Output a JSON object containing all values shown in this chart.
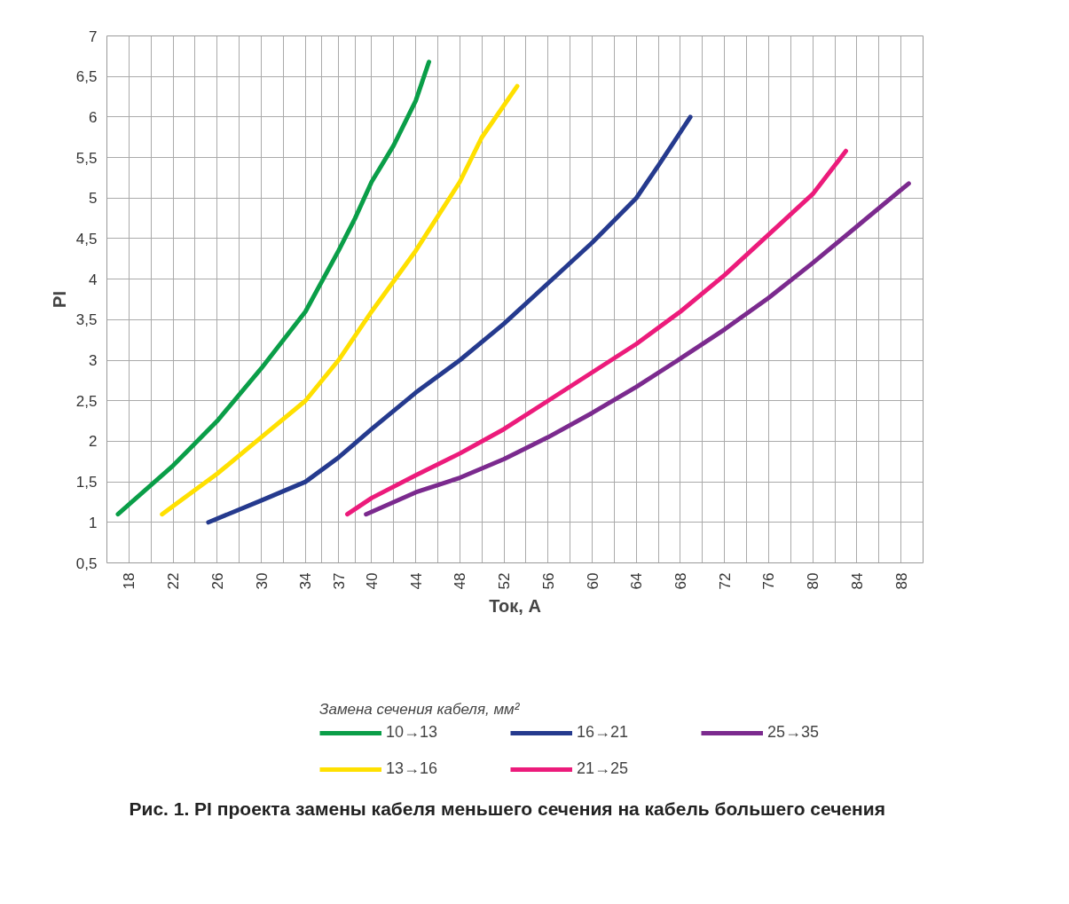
{
  "chart_data": {
    "type": "line",
    "xlabel": "Ток, А",
    "ylabel": "PI",
    "legend_title": "Замена сечения кабеля, мм²",
    "xlim": [
      16,
      90
    ],
    "ylim": [
      0.5,
      7
    ],
    "xticks": [
      18,
      {
        "value": 20,
        "label": null
      },
      22,
      {
        "value": 24,
        "label": null
      },
      26,
      {
        "value": 28,
        "label": null
      },
      30,
      {
        "value": 32,
        "label": null
      },
      34,
      {
        "value": 35.5,
        "label": null
      },
      37,
      {
        "value": 38.5,
        "label": null
      },
      40,
      {
        "value": 42,
        "label": null
      },
      44,
      {
        "value": 46,
        "label": null
      },
      48,
      {
        "value": 50,
        "label": null
      },
      52,
      {
        "value": 54,
        "label": null
      },
      56,
      {
        "value": 58,
        "label": null
      },
      60,
      {
        "value": 62,
        "label": null
      },
      64,
      {
        "value": 66,
        "label": null
      },
      68,
      {
        "value": 70,
        "label": null
      },
      72,
      {
        "value": 74,
        "label": null
      },
      76,
      {
        "value": 78,
        "label": null
      },
      80,
      {
        "value": 82,
        "label": null
      },
      84,
      {
        "value": 86,
        "label": null
      },
      88
    ],
    "yticks": [
      {
        "value": 0.5,
        "label": "0,5"
      },
      1,
      {
        "value": 1.5,
        "label": "1,5"
      },
      2,
      {
        "value": 2.5,
        "label": "2,5"
      },
      3,
      {
        "value": 3.5,
        "label": "3,5"
      },
      4,
      {
        "value": 4.5,
        "label": "4,5"
      },
      5,
      {
        "value": 5.5,
        "label": "5,5"
      },
      6,
      {
        "value": 6.5,
        "label": "6,5"
      },
      7
    ],
    "grid": true,
    "legend": "bottom",
    "line_style": "solid",
    "marker": "none",
    "series": [
      {
        "name": "10→13",
        "color": "#0a9e48",
        "x": [
          17,
          18,
          22,
          26,
          30,
          34,
          37,
          38.5,
          40,
          42,
          44,
          45.2
        ],
        "values": [
          1.1,
          1.22,
          1.7,
          2.25,
          2.9,
          3.6,
          4.35,
          4.75,
          5.2,
          5.65,
          6.2,
          6.68
        ]
      },
      {
        "name": "13→16",
        "color": "#ffe000",
        "x": [
          21,
          22,
          26,
          30,
          34,
          37,
          40,
          44,
          48,
          50,
          53.2
        ],
        "values": [
          1.1,
          1.2,
          1.6,
          2.05,
          2.5,
          3.0,
          3.6,
          4.35,
          5.2,
          5.75,
          6.38
        ]
      },
      {
        "name": "16→21",
        "color": "#253a8e",
        "x": [
          25.2,
          30,
          34,
          37,
          40,
          44,
          48,
          52,
          56,
          60,
          64,
          66,
          68.9
        ],
        "values": [
          1.0,
          1.27,
          1.5,
          1.8,
          2.15,
          2.6,
          3.0,
          3.45,
          3.95,
          4.45,
          5.0,
          5.4,
          6.0
        ]
      },
      {
        "name": "21→25",
        "color": "#ec1b7b",
        "x": [
          37.8,
          40,
          44,
          48,
          52,
          56,
          60,
          64,
          68,
          72,
          76,
          80,
          83
        ],
        "values": [
          1.1,
          1.3,
          1.58,
          1.85,
          2.15,
          2.5,
          2.85,
          3.2,
          3.6,
          4.05,
          4.55,
          5.05,
          5.58
        ]
      },
      {
        "name": "25→35",
        "color": "#7b2a8e",
        "x": [
          39.5,
          44,
          48,
          52,
          56,
          60,
          64,
          68,
          72,
          76,
          80,
          84,
          88.7
        ],
        "values": [
          1.1,
          1.37,
          1.55,
          1.78,
          2.05,
          2.35,
          2.67,
          3.02,
          3.38,
          3.77,
          4.2,
          4.65,
          5.18
        ]
      }
    ],
    "annotations": [
      "Рис. 1. PI проекта замены кабеля меньшего сечения на кабель большего сечения"
    ]
  }
}
